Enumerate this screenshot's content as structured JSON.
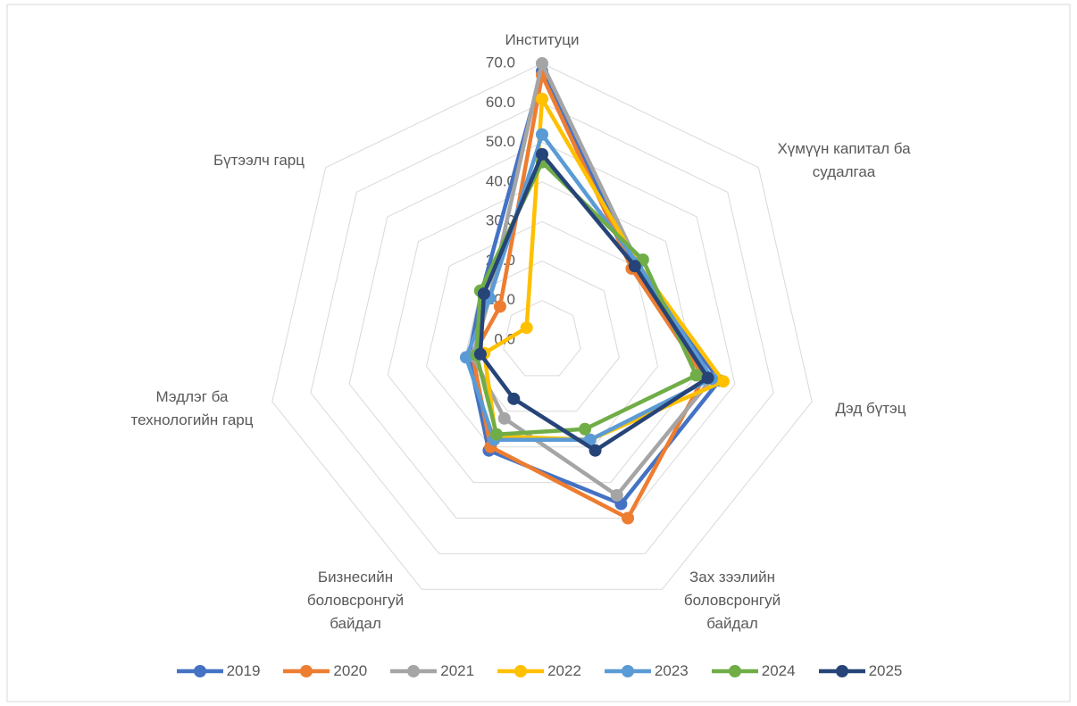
{
  "chart_data": {
    "type": "radar",
    "categories": [
      "Институци",
      "Хүмүүн капитал ба судалгаа",
      "Дэд бүтэц",
      "Зах зээлийн боловсронгуй байдал",
      "Бизнесийн боловсронгуй байдал",
      "Мэдлэг ба технологийн гарц",
      "Бүтээлч гарц"
    ],
    "series": [
      {
        "name": "2019",
        "color": "#4472c4",
        "values": [
          68,
          30,
          46,
          46,
          31,
          19,
          19.5
        ]
      },
      {
        "name": "2020",
        "color": "#ed7d31",
        "values": [
          67,
          29,
          42,
          50,
          30,
          18,
          13.6
        ]
      },
      {
        "name": "2021",
        "color": "#a5a5a5",
        "values": [
          70,
          31,
          44,
          43.6,
          22,
          18,
          17
        ]
      },
      {
        "name": "2022",
        "color": "#ffc000",
        "values": [
          61,
          31,
          47,
          28,
          27,
          15,
          5
        ]
      },
      {
        "name": "2023",
        "color": "#5b9bd5",
        "values": [
          52,
          31,
          44,
          28,
          28,
          19.7,
          17
        ]
      },
      {
        "name": "2024",
        "color": "#70ad47",
        "values": [
          45,
          32.6,
          40,
          25,
          26.5,
          17,
          20
        ]
      },
      {
        "name": "2025",
        "color": "#264478",
        "values": [
          47,
          30,
          43,
          31,
          16.5,
          16,
          18.8
        ]
      }
    ],
    "rlim": [
      0,
      70
    ],
    "rticks": [
      {
        "value": 0,
        "label": "0.0"
      },
      {
        "value": 10,
        "label": "10.0"
      },
      {
        "value": 20,
        "label": "20.0"
      },
      {
        "value": 30,
        "label": "30.0"
      },
      {
        "value": 40,
        "label": "40.0"
      },
      {
        "value": 50,
        "label": "50.0"
      },
      {
        "value": 60,
        "label": "60.0"
      },
      {
        "value": 70,
        "label": "70.0"
      }
    ],
    "grid": true,
    "legend": "bottom"
  }
}
